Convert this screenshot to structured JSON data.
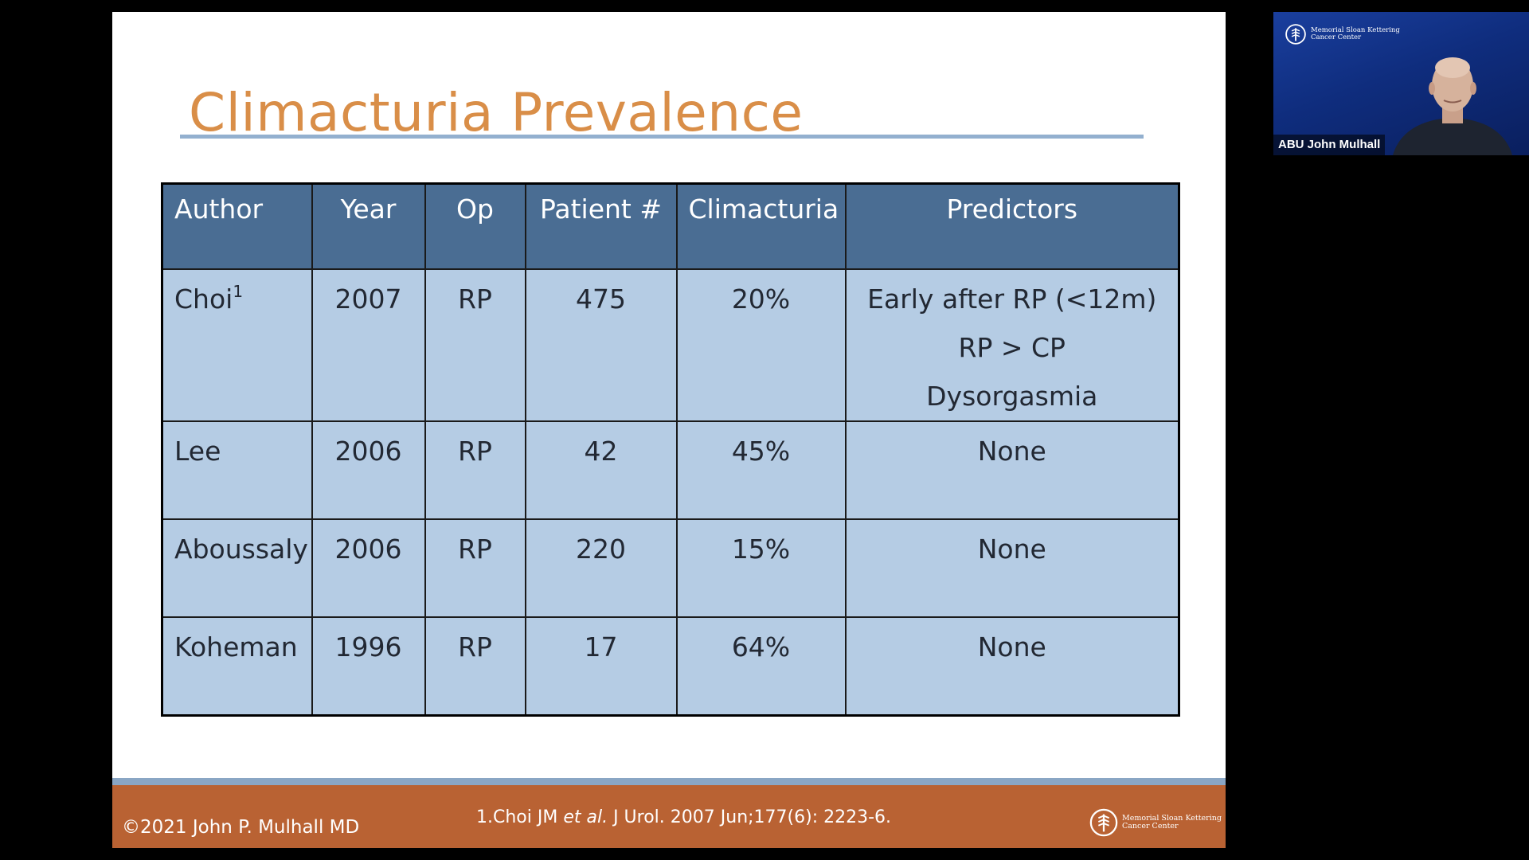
{
  "slide": {
    "title": "Climacturia Prevalence",
    "table": {
      "headers": {
        "author": "Author",
        "year": "Year",
        "op": "Op",
        "patients": "Patient  #",
        "climacturia": "Climacturia",
        "predictors": "Predictors"
      },
      "rows": [
        {
          "author": "Choi",
          "author_sup": "1",
          "year": "2007",
          "op": "RP",
          "patients": "475",
          "climacturia": "20%",
          "predictors": [
            "Early after RP (<12m)",
            "RP > CP",
            "Dysorgasmia"
          ]
        },
        {
          "author": "Lee",
          "year": "2006",
          "op": "RP",
          "patients": "42",
          "climacturia": "45%",
          "predictors": [
            "None"
          ]
        },
        {
          "author": "Aboussaly",
          "year": "2006",
          "op": "RP",
          "patients": "220",
          "climacturia": "15%",
          "predictors": [
            "None"
          ]
        },
        {
          "author": "Koheman",
          "year": "1996",
          "op": "RP",
          "patients": "17",
          "climacturia": "64%",
          "predictors": [
            "None"
          ]
        }
      ]
    },
    "footer": {
      "copyright": "©2021 John P. Mulhall MD",
      "reference_prefix": "1.Choi JM ",
      "reference_italic": "et al.",
      "reference_suffix": " J Urol. 2007 Jun;177(6): 2223-6.",
      "logo_line1": "Memorial Sloan Kettering",
      "logo_line2": "Cancer Center"
    }
  },
  "webcam": {
    "participant_name": "ABU John Mulhall",
    "logo_line1": "Memorial Sloan Kettering",
    "logo_line2": "Cancer Center"
  },
  "colors": {
    "title": "#d98e48",
    "header_fill": "#4a6d93",
    "cell_fill": "#b5cce4",
    "footer_orange": "#b96233",
    "footer_blue": "#8aa6c4",
    "webcam_bg": "#0f2d7e"
  }
}
